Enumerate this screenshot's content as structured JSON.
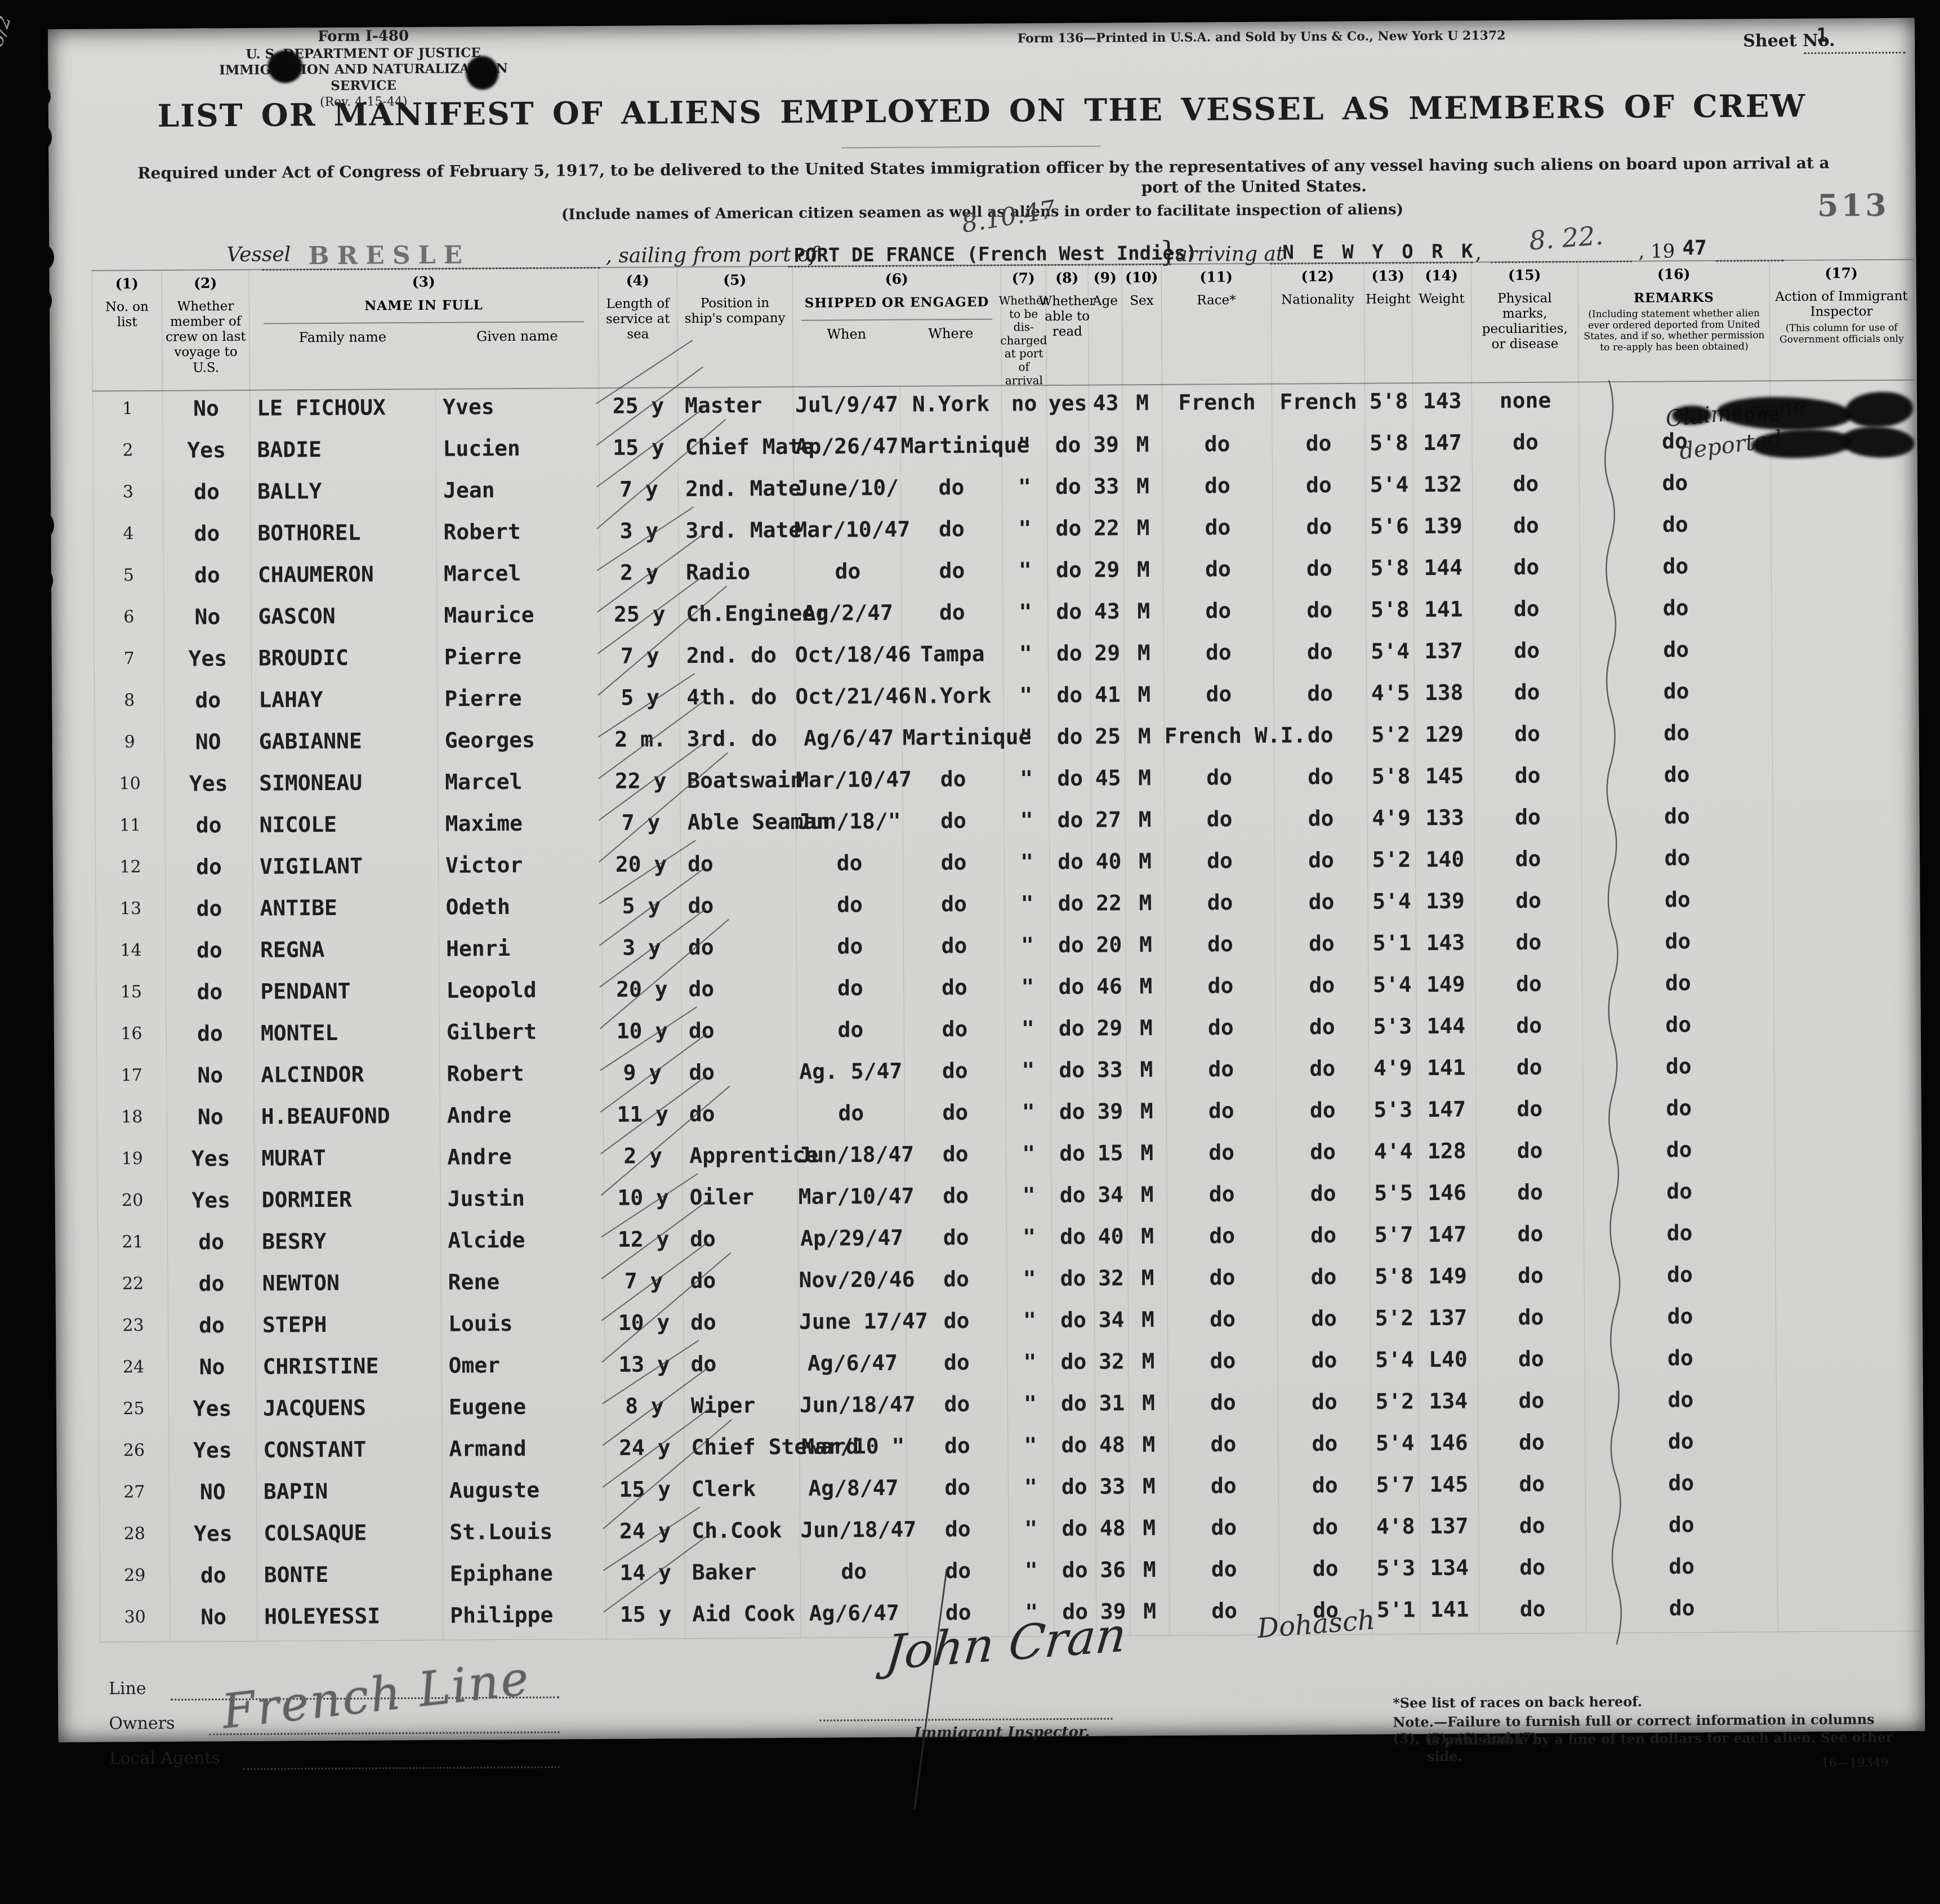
{
  "form": {
    "form_no": "Form I-480",
    "agency_line1": "U. S. DEPARTMENT OF JUSTICE",
    "agency_line2": "IMMIGRATION AND NATURALIZATION SERVICE",
    "revision": "(Rev. 4-15-44)",
    "print_note": "Form 136—Printed in U.S.A. and Sold by Uns & Co., New York   U 21372",
    "sheet_label": "Sheet No.",
    "sheet_value": "1",
    "stamp_number": "513",
    "pencil_note": "3.55/2",
    "title": "LIST OR MANIFEST OF ALIENS EMPLOYED ON THE VESSEL AS MEMBERS OF CREW",
    "subtitle_line1": "Required under Act of Congress of February 5, 1917, to be delivered to the United States immigration officer by the representatives of any vessel having such aliens on board upon arrival at a",
    "subtitle_line2": "port of the United States.",
    "include_note": "(Include names of American citizen seamen as well as aliens in order to facilitate inspection of aliens)"
  },
  "vessel_line": {
    "vessel_label": "Vessel",
    "vessel_value": "BRESLE",
    "sailing_label": ", sailing from port of",
    "sailing_value": "PORT DE FRANCE  (French West Indies)",
    "sailing_hand": "8.10.47",
    "brace": "}",
    "arriving_label": "arriving at",
    "arriving_value": "N E W   Y O R K",
    "comma": ",",
    "arrival_date_hand": "8. 22.",
    "year_label": ", 19",
    "year_value": "47"
  },
  "table": {
    "columns": [
      {
        "num": "(1)",
        "label": "No. on list"
      },
      {
        "num": "(2)",
        "label": "Whether member of crew on last voyage to U.S."
      },
      {
        "num": "(3)",
        "label": "NAME IN FULL",
        "sub": [
          "Family name",
          "Given name"
        ]
      },
      {
        "num": "(4)",
        "label": "Length of service at sea"
      },
      {
        "num": "(5)",
        "label": "Position in ship's company"
      },
      {
        "num": "(6)",
        "label": "SHIPPED OR ENGAGED",
        "sub": [
          "When",
          "Where"
        ]
      },
      {
        "num": "(7)",
        "label": "Whether to be dis- charged at port of arrival"
      },
      {
        "num": "(8)",
        "label": "Whether able to read"
      },
      {
        "num": "(9)",
        "label": "Age"
      },
      {
        "num": "(10)",
        "label": "Sex"
      },
      {
        "num": "(11)",
        "label": "Race*"
      },
      {
        "num": "(12)",
        "label": "Nationality"
      },
      {
        "num": "(13)",
        "label": "Height"
      },
      {
        "num": "(14)",
        "label": "Weight"
      },
      {
        "num": "(15)",
        "label": "Physical marks, peculiarities, or disease"
      },
      {
        "num": "(16)",
        "label": "REMARKS",
        "note": "(Including statement whether alien ever ordered deported from United States, and if so, whether permission to re-apply has been obtained)"
      },
      {
        "num": "(17)",
        "label": "Action of Immigrant Inspector",
        "note": "(This column for use of Government officials only"
      }
    ]
  },
  "crew": {
    "rows": [
      {
        "no": "1",
        "member": "No",
        "family": "LE FICHOUX",
        "given": "Yves",
        "service": "25 y",
        "position": "Master",
        "when": "Jul/9/47",
        "where": "N.York",
        "disch": "no",
        "read": "yes",
        "age": "43",
        "sex": "M",
        "race": "French",
        "nat": "French",
        "height": "5'8",
        "weight": "143",
        "marks": "none",
        "remarks": "",
        "action": ""
      },
      {
        "no": "2",
        "member": "Yes",
        "family": "BADIE",
        "given": "Lucien",
        "service": "15 y",
        "position": "Chief Mate",
        "when": "Ap/26/47",
        "where": "Martinique",
        "disch": "\"",
        "read": "do",
        "age": "39",
        "sex": "M",
        "race": "do",
        "nat": "do",
        "height": "5'8",
        "weight": "147",
        "marks": "do",
        "remarks": "do",
        "action": ""
      },
      {
        "no": "3",
        "member": "do",
        "family": "BALLY",
        "given": "Jean",
        "service": "7 y",
        "position": "2nd. Mate",
        "when": "June/10/",
        "where": "do",
        "disch": "\"",
        "read": "do",
        "age": "33",
        "sex": "M",
        "race": "do",
        "nat": "do",
        "height": "5'4",
        "weight": "132",
        "marks": "do",
        "remarks": "do",
        "action": ""
      },
      {
        "no": "4",
        "member": "do",
        "family": "BOTHOREL",
        "given": "Robert",
        "service": "3 y",
        "position": "3rd. Mate",
        "when": "Mar/10/47",
        "where": "do",
        "disch": "\"",
        "read": "do",
        "age": "22",
        "sex": "M",
        "race": "do",
        "nat": "do",
        "height": "5'6",
        "weight": "139",
        "marks": "do",
        "remarks": "do",
        "action": ""
      },
      {
        "no": "5",
        "member": "do",
        "family": "CHAUMERON",
        "given": "Marcel",
        "service": "2 y",
        "position": "Radio",
        "when": "do",
        "where": "do",
        "disch": "\"",
        "read": "do",
        "age": "29",
        "sex": "M",
        "race": "do",
        "nat": "do",
        "height": "5'8",
        "weight": "144",
        "marks": "do",
        "remarks": "do",
        "action": ""
      },
      {
        "no": "6",
        "member": "No",
        "family": "GASCON",
        "given": "Maurice",
        "service": "25 y",
        "position": "Ch.Engineer",
        "when": "Ag/2/47",
        "where": "do",
        "disch": "\"",
        "read": "do",
        "age": "43",
        "sex": "M",
        "race": "do",
        "nat": "do",
        "height": "5'8",
        "weight": "141",
        "marks": "do",
        "remarks": "do",
        "action": ""
      },
      {
        "no": "7",
        "member": "Yes",
        "family": "BROUDIC",
        "given": "Pierre",
        "service": "7 y",
        "position": "2nd.  do",
        "when": "Oct/18/46",
        "where": "Tampa",
        "disch": "\"",
        "read": "do",
        "age": "29",
        "sex": "M",
        "race": "do",
        "nat": "do",
        "height": "5'4",
        "weight": "137",
        "marks": "do",
        "remarks": "do",
        "action": ""
      },
      {
        "no": "8",
        "member": "do",
        "family": "LAHAY",
        "given": "Pierre",
        "service": "5 y",
        "position": "4th.  do",
        "when": "Oct/21/46",
        "where": "N.York",
        "disch": "\"",
        "read": "do",
        "age": "41",
        "sex": "M",
        "race": "do",
        "nat": "do",
        "height": "4'5",
        "weight": "138",
        "marks": "do",
        "remarks": "do",
        "action": ""
      },
      {
        "no": "9",
        "member": "NO",
        "family": "GABIANNE",
        "given": "Georges",
        "service": "2 m.",
        "position": "3rd.  do",
        "when": "Ag/6/47",
        "where": "Martinique",
        "disch": "\"",
        "read": "do",
        "age": "25",
        "sex": "M",
        "race": "French W.I.",
        "nat": "do",
        "height": "5'2",
        "weight": "129",
        "marks": "do",
        "remarks": "do",
        "action": ""
      },
      {
        "no": "10",
        "member": "Yes",
        "family": "SIMONEAU",
        "given": "Marcel",
        "service": "22 y",
        "position": "Boatswain",
        "when": "Mar/10/47",
        "where": "do",
        "disch": "\"",
        "read": "do",
        "age": "45",
        "sex": "M",
        "race": "do",
        "nat": "do",
        "height": "5'8",
        "weight": "145",
        "marks": "do",
        "remarks": "do",
        "action": ""
      },
      {
        "no": "11",
        "member": "do",
        "family": "NICOLE",
        "given": "Maxime",
        "service": "7 y",
        "position": "Able Seaman",
        "when": "Jun/18/\"",
        "where": "do",
        "disch": "\"",
        "read": "do",
        "age": "27",
        "sex": "M",
        "race": "do",
        "nat": "do",
        "height": "4'9",
        "weight": "133",
        "marks": "do",
        "remarks": "do",
        "action": ""
      },
      {
        "no": "12",
        "member": "do",
        "family": "VIGILANT",
        "given": "Victor",
        "service": "20 y",
        "position": "do",
        "when": "do",
        "where": "do",
        "disch": "\"",
        "read": "do",
        "age": "40",
        "sex": "M",
        "race": "do",
        "nat": "do",
        "height": "5'2",
        "weight": "140",
        "marks": "do",
        "remarks": "do",
        "action": ""
      },
      {
        "no": "13",
        "member": "do",
        "family": "ANTIBE",
        "given": "Odeth",
        "service": "5 y",
        "position": "do",
        "when": "do",
        "where": "do",
        "disch": "\"",
        "read": "do",
        "age": "22",
        "sex": "M",
        "race": "do",
        "nat": "do",
        "height": "5'4",
        "weight": "139",
        "marks": "do",
        "remarks": "do",
        "action": ""
      },
      {
        "no": "14",
        "member": "do",
        "family": "REGNA",
        "given": "Henri",
        "service": "3 y",
        "position": "do",
        "when": "do",
        "where": "do",
        "disch": "\"",
        "read": "do",
        "age": "20",
        "sex": "M",
        "race": "do",
        "nat": "do",
        "height": "5'1",
        "weight": "143",
        "marks": "do",
        "remarks": "do",
        "action": ""
      },
      {
        "no": "15",
        "member": "do",
        "family": "PENDANT",
        "given": "Leopold",
        "service": "20 y",
        "position": "do",
        "when": "do",
        "where": "do",
        "disch": "\"",
        "read": "do",
        "age": "46",
        "sex": "M",
        "race": "do",
        "nat": "do",
        "height": "5'4",
        "weight": "149",
        "marks": "do",
        "remarks": "do",
        "action": ""
      },
      {
        "no": "16",
        "member": "do",
        "family": "MONTEL",
        "given": "Gilbert",
        "service": "10 y",
        "position": "do",
        "when": "do",
        "where": "do",
        "disch": "\"",
        "read": "do",
        "age": "29",
        "sex": "M",
        "race": "do",
        "nat": "do",
        "height": "5'3",
        "weight": "144",
        "marks": "do",
        "remarks": "do",
        "action": ""
      },
      {
        "no": "17",
        "member": "No",
        "family": "ALCINDOR",
        "given": "Robert",
        "service": "9 y",
        "position": "do",
        "when": "Ag. 5/47",
        "where": "do",
        "disch": "\"",
        "read": "do",
        "age": "33",
        "sex": "M",
        "race": "do",
        "nat": "do",
        "height": "4'9",
        "weight": "141",
        "marks": "do",
        "remarks": "do",
        "action": ""
      },
      {
        "no": "18",
        "member": "No",
        "family": "H.BEAUFOND",
        "given": "Andre",
        "service": "11 y",
        "position": "do",
        "when": "do",
        "where": "do",
        "disch": "\"",
        "read": "do",
        "age": "39",
        "sex": "M",
        "race": "do",
        "nat": "do",
        "height": "5'3",
        "weight": "147",
        "marks": "do",
        "remarks": "do",
        "action": ""
      },
      {
        "no": "19",
        "member": "Yes",
        "family": "MURAT",
        "given": "Andre",
        "service": "2 y",
        "position": "Apprentice",
        "when": "Jun/18/47",
        "where": "do",
        "disch": "\"",
        "read": "do",
        "age": "15",
        "sex": "M",
        "race": "do",
        "nat": "do",
        "height": "4'4",
        "weight": "128",
        "marks": "do",
        "remarks": "do",
        "action": ""
      },
      {
        "no": "20",
        "member": "Yes",
        "family": "DORMIER",
        "given": "Justin",
        "service": "10 y",
        "position": "Oiler",
        "when": "Mar/10/47",
        "where": "do",
        "disch": "\"",
        "read": "do",
        "age": "34",
        "sex": "M",
        "race": "do",
        "nat": "do",
        "height": "5'5",
        "weight": "146",
        "marks": "do",
        "remarks": "do",
        "action": ""
      },
      {
        "no": "21",
        "member": "do",
        "family": "BESRY",
        "given": "Alcide",
        "service": "12 y",
        "position": "do",
        "when": "Ap/29/47",
        "where": "do",
        "disch": "\"",
        "read": "do",
        "age": "40",
        "sex": "M",
        "race": "do",
        "nat": "do",
        "height": "5'7",
        "weight": "147",
        "marks": "do",
        "remarks": "do",
        "action": ""
      },
      {
        "no": "22",
        "member": "do",
        "family": "NEWTON",
        "given": "Rene",
        "service": "7 y",
        "position": "do",
        "when": "Nov/20/46",
        "where": "do",
        "disch": "\"",
        "read": "do",
        "age": "32",
        "sex": "M",
        "race": "do",
        "nat": "do",
        "height": "5'8",
        "weight": "149",
        "marks": "do",
        "remarks": "do",
        "action": ""
      },
      {
        "no": "23",
        "member": "do",
        "family": "STEPH",
        "given": "Louis",
        "service": "10 y",
        "position": "do",
        "when": "June 17/47",
        "where": "do",
        "disch": "\"",
        "read": "do",
        "age": "34",
        "sex": "M",
        "race": "do",
        "nat": "do",
        "height": "5'2",
        "weight": "137",
        "marks": "do",
        "remarks": "do",
        "action": ""
      },
      {
        "no": "24",
        "member": "No",
        "family": "CHRISTINE",
        "given": "Omer",
        "service": "13 y",
        "position": "do",
        "when": "Ag/6/47",
        "where": "do",
        "disch": "\"",
        "read": "do",
        "age": "32",
        "sex": "M",
        "race": "do",
        "nat": "do",
        "height": "5'4",
        "weight": "L40",
        "marks": "do",
        "remarks": "do",
        "action": ""
      },
      {
        "no": "25",
        "member": "Yes",
        "family": "JACQUENS",
        "given": "Eugene",
        "service": "8 y",
        "position": "Wiper",
        "when": "Jun/18/47",
        "where": "do",
        "disch": "\"",
        "read": "do",
        "age": "31",
        "sex": "M",
        "race": "do",
        "nat": "do",
        "height": "5'2",
        "weight": "134",
        "marks": "do",
        "remarks": "do",
        "action": ""
      },
      {
        "no": "26",
        "member": "Yes",
        "family": "CONSTANT",
        "given": "Armand",
        "service": "24 y",
        "position": "Chief Steward",
        "when": "Mar/10 \"",
        "where": "do",
        "disch": "\"",
        "read": "do",
        "age": "48",
        "sex": "M",
        "race": "do",
        "nat": "do",
        "height": "5'4",
        "weight": "146",
        "marks": "do",
        "remarks": "do",
        "action": ""
      },
      {
        "no": "27",
        "member": "NO",
        "family": "BAPIN",
        "given": "Auguste",
        "service": "15 y",
        "position": "Clerk",
        "when": "Ag/8/47",
        "where": "do",
        "disch": "\"",
        "read": "do",
        "age": "33",
        "sex": "M",
        "race": "do",
        "nat": "do",
        "height": "5'7",
        "weight": "145",
        "marks": "do",
        "remarks": "do",
        "action": ""
      },
      {
        "no": "28",
        "member": "Yes",
        "family": "COLSAQUE",
        "given": "St.Louis",
        "service": "24 y",
        "position": "Ch.Cook",
        "when": "Jun/18/47",
        "where": "do",
        "disch": "\"",
        "read": "do",
        "age": "48",
        "sex": "M",
        "race": "do",
        "nat": "do",
        "height": "4'8",
        "weight": "137",
        "marks": "do",
        "remarks": "do",
        "action": ""
      },
      {
        "no": "29",
        "member": "do",
        "family": "BONTE",
        "given": "Epiphane",
        "service": "14 y",
        "position": "Baker",
        "when": "do",
        "where": "do",
        "disch": "\"",
        "read": "do",
        "age": "36",
        "sex": "M",
        "race": "do",
        "nat": "do",
        "height": "5'3",
        "weight": "134",
        "marks": "do",
        "remarks": "do",
        "action": ""
      },
      {
        "no": "30",
        "member": "No",
        "family": "HOLEYESSI",
        "given": "Philippe",
        "service": "15 y",
        "position": "Aid Cook",
        "when": "Ag/6/47",
        "where": "do",
        "disch": "\"",
        "read": "do",
        "age": "39",
        "sex": "M",
        "race": "do",
        "nat": "do",
        "height": "5'1",
        "weight": "141",
        "marks": "do",
        "remarks": "do",
        "action": ""
      }
    ]
  },
  "annotations": {
    "row1_remarks_hand_line1": "Claims none",
    "row1_remarks_hand_line2": "deported",
    "row1_remarks_typed": "none",
    "row30_nationality_hand": "Dohasch"
  },
  "footer": {
    "line_label": "Line",
    "owners_label": "Owners",
    "agents_label": "Local Agents",
    "line_owner_hand": "French Line",
    "signature_hand": "John Cran",
    "inspector_label": "Immigrant Inspector.",
    "note1": "*See list of races on back hereof.",
    "note2": "Note.—Failure to furnish full or correct information in columns (3), (5), (6) and (7)",
    "note3": "is punishable by a fine of ten dollars for each alien. See other side.",
    "form_footer_no": "16—19349"
  }
}
